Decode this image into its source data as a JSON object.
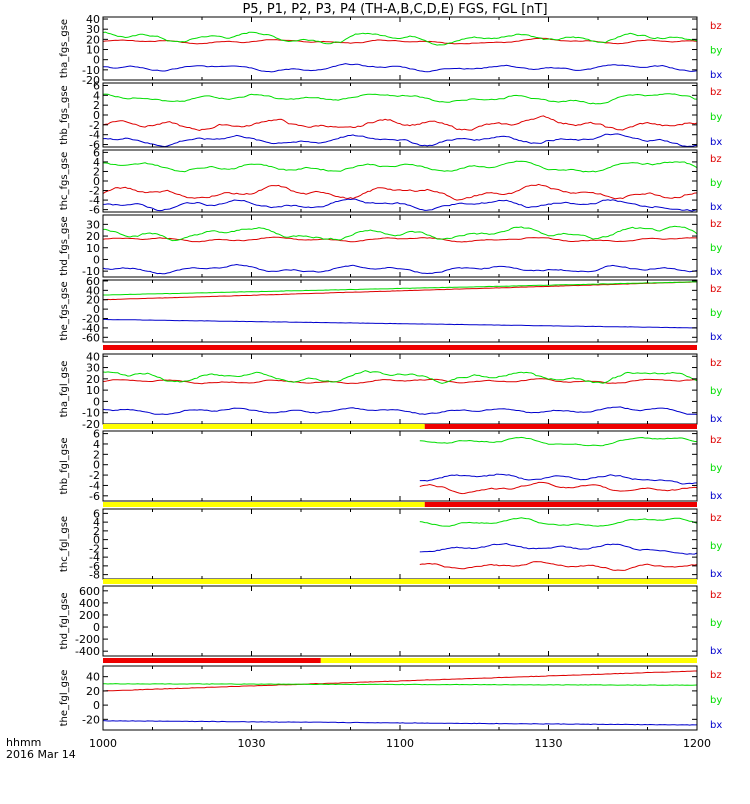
{
  "title": "P5, P1, P2, P3, P4 (TH-A,B,C,D,E) FGS, FGL [nT]",
  "colors": {
    "bx": "#0000cc",
    "by": "#00dd00",
    "bz": "#dd0000",
    "flag_red": "#ee0000",
    "flag_yellow": "#ffff00",
    "frame": "#000000"
  },
  "x_axis": {
    "ticks": [
      "1000",
      "1030",
      "1100",
      "1130",
      "1200"
    ],
    "tick_minutes": [
      0,
      30,
      60,
      90,
      120
    ],
    "range_minutes": [
      0,
      120
    ],
    "label_left": "hhmm",
    "date": "2016 Mar 14"
  },
  "chart_data": [
    {
      "type": "line",
      "panel": "tha_fgs_gse",
      "ylabel": "tha_fgs_gse",
      "yticks": [
        40,
        30,
        20,
        10,
        0,
        -10,
        -20
      ],
      "ylim": [
        -20,
        42
      ],
      "series": [
        {
          "name": "bz",
          "base": 18,
          "amp": 2,
          "start": 0
        },
        {
          "name": "by",
          "base": 22,
          "amp": 5,
          "start": 0
        },
        {
          "name": "bx",
          "base": -8,
          "amp": 3,
          "start": 0
        }
      ]
    },
    {
      "type": "line",
      "panel": "thb_fgs_gse",
      "ylabel": "thb_fgs_gse",
      "yticks": [
        6,
        4,
        2,
        0,
        -2,
        -4,
        -6
      ],
      "ylim": [
        -6.5,
        6.5
      ],
      "series": [
        {
          "name": "bz",
          "base": -2,
          "amp": 1.2,
          "start": 0
        },
        {
          "name": "by",
          "base": 3.5,
          "amp": 0.8,
          "start": 0
        },
        {
          "name": "bx",
          "base": -5,
          "amp": 1.0,
          "start": 0
        }
      ]
    },
    {
      "type": "line",
      "panel": "thc_fgs_gse",
      "ylabel": "thc_fgs_gse",
      "yticks": [
        6,
        4,
        2,
        0,
        -2,
        -4,
        -6
      ],
      "ylim": [
        -6.5,
        6.5
      ],
      "series": [
        {
          "name": "bz",
          "base": -2.5,
          "amp": 1.2,
          "start": 0
        },
        {
          "name": "by",
          "base": 3,
          "amp": 0.9,
          "start": 0
        },
        {
          "name": "bx",
          "base": -5,
          "amp": 1.0,
          "start": 0
        }
      ]
    },
    {
      "type": "line",
      "panel": "thd_fgs_gse",
      "ylabel": "thd_fgs_gse",
      "yticks": [
        30,
        20,
        10,
        0,
        -10
      ],
      "ylim": [
        -15,
        38
      ],
      "series": [
        {
          "name": "bz",
          "base": 17,
          "amp": 2,
          "start": 0
        },
        {
          "name": "by",
          "base": 22,
          "amp": 5,
          "start": 0
        },
        {
          "name": "bx",
          "base": -8,
          "amp": 3,
          "start": 0
        }
      ]
    },
    {
      "type": "line",
      "panel": "the_fgs_gse",
      "ylabel": "the_fgs_gse",
      "yticks": [
        60,
        40,
        20,
        0,
        -20,
        -40,
        -60
      ],
      "ylim": [
        -70,
        62
      ],
      "series": [
        {
          "name": "bz",
          "from": 20,
          "to": 58,
          "start": 0
        },
        {
          "name": "by",
          "from": 30,
          "to": 58,
          "start": 0
        },
        {
          "name": "bx",
          "from": -22,
          "to": -40,
          "start": 0
        }
      ]
    },
    {
      "type": "line",
      "panel": "tha_fgl_gse",
      "ylabel": "tha_fgl_gse",
      "yticks": [
        40,
        30,
        20,
        10,
        0,
        -10,
        -20
      ],
      "ylim": [
        -20,
        42
      ],
      "series": [
        {
          "name": "bz",
          "base": 18,
          "amp": 2,
          "start": 0
        },
        {
          "name": "by",
          "base": 22,
          "amp": 5,
          "start": 0
        },
        {
          "name": "bx",
          "base": -8,
          "amp": 3,
          "start": 0
        }
      ]
    },
    {
      "type": "line",
      "panel": "thb_fgl_gse",
      "ylabel": "thb_fgl_gse",
      "yticks": [
        6,
        4,
        2,
        0,
        -2,
        -4,
        -6
      ],
      "ylim": [
        -7,
        6.5
      ],
      "series": [
        {
          "name": "bz",
          "base": -4.5,
          "amp": 0.8,
          "start": 64
        },
        {
          "name": "by",
          "base": 4.5,
          "amp": 0.6,
          "start": 64
        },
        {
          "name": "bx",
          "base": -2.5,
          "amp": 0.8,
          "start": 64
        }
      ]
    },
    {
      "type": "line",
      "panel": "thc_fgl_gse",
      "ylabel": "thc_fgl_gse",
      "yticks": [
        6,
        4,
        2,
        0,
        -2,
        -4,
        -6,
        -8
      ],
      "ylim": [
        -9,
        7
      ],
      "series": [
        {
          "name": "bz",
          "base": -6,
          "amp": 0.8,
          "start": 64
        },
        {
          "name": "by",
          "base": 4,
          "amp": 0.7,
          "start": 64
        },
        {
          "name": "bx",
          "base": -2,
          "amp": 0.9,
          "start": 64
        }
      ]
    },
    {
      "type": "line",
      "panel": "thd_fgl_gse",
      "ylabel": "thd_fgl_gse",
      "yticks": [
        600,
        400,
        200,
        0,
        -200,
        -400
      ],
      "ylim": [
        -480,
        680
      ],
      "series": [
        {
          "name": "bz",
          "base": 0,
          "amp": 0,
          "start": 999
        },
        {
          "name": "by",
          "base": 0,
          "amp": 0,
          "start": 999
        },
        {
          "name": "bx",
          "base": 0,
          "amp": 0,
          "start": 999
        }
      ]
    },
    {
      "type": "line",
      "panel": "the_fgl_gse",
      "ylabel": "the_fgl_gse",
      "yticks": [
        40,
        20,
        0,
        -20
      ],
      "ylim": [
        -35,
        55
      ],
      "series": [
        {
          "name": "bz",
          "from": 20,
          "to": 48,
          "start": 0
        },
        {
          "name": "by",
          "from": 30,
          "to": 28,
          "start": 0
        },
        {
          "name": "bx",
          "from": -22,
          "to": -28,
          "start": 0
        }
      ]
    }
  ],
  "legend_labels": [
    "bz",
    "by",
    "bx"
  ],
  "flag_bars": [
    {
      "segments": [
        {
          "from": 0,
          "to": 120,
          "color": "red"
        }
      ]
    },
    {
      "segments": [
        {
          "from": 0,
          "to": 65,
          "color": "yellow"
        },
        {
          "from": 65,
          "to": 120,
          "color": "red"
        }
      ]
    },
    {
      "segments": [
        {
          "from": 0,
          "to": 65,
          "color": "yellow"
        },
        {
          "from": 65,
          "to": 120,
          "color": "red"
        }
      ]
    },
    {
      "segments": [
        {
          "from": 0,
          "to": 120,
          "color": "yellow"
        }
      ]
    },
    {
      "segments": [
        {
          "from": 0,
          "to": 44,
          "color": "red"
        },
        {
          "from": 44,
          "to": 120,
          "color": "yellow"
        }
      ]
    }
  ]
}
